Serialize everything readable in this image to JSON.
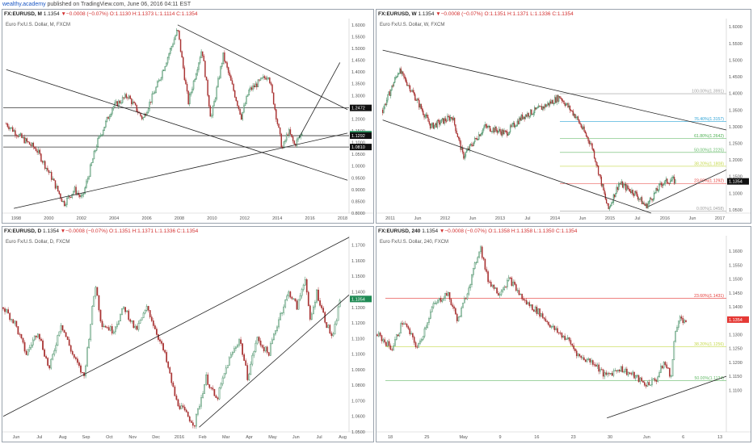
{
  "publish": {
    "author": "wealthy.academy",
    "text": " published on TradingView.com, June 06, 2016 04:11 EST"
  },
  "colors": {
    "up": "#3d8a5e",
    "down": "#a83232",
    "trendline": "#222222",
    "fib_100": "#9e9e9e",
    "fib_764": "#2ea3d6",
    "fib_618": "#4caf50",
    "fib_50": "#66bb6a",
    "fib_382": "#c5d94a",
    "fib_236": "#e53935",
    "fib_0": "#9e9e9e",
    "price_box": "#1f8a54",
    "level_box": "#111111",
    "red_box": "#e53935"
  },
  "panels": [
    {
      "id": "monthly",
      "symbol": "FX:EURUSD, M",
      "price_info": "1.1354",
      "change": "▼−0.0008 (−0.07%)",
      "ohlc": "O:1.1130 H:1.1373 L:1.1114 C:1.1354",
      "subtitle": "Euro Fx/U.S. Dollar, M, FXCM"
    },
    {
      "id": "weekly",
      "symbol": "FX:EURUSD, W",
      "price_info": "1.1354",
      "change": "▼−0.0008 (−0.07%)",
      "ohlc": "O:1.1351 H:1.1371 L:1.1336 C:1.1354",
      "subtitle": "Euro Fx/U.S. Dollar, W, FXCM"
    },
    {
      "id": "daily",
      "symbol": "FX:EURUSD, D",
      "price_info": "1.1354",
      "change": "▼−0.0008 (−0.07%)",
      "ohlc": "O:1.1351 H:1.1371 L:1.1336 C:1.1354",
      "subtitle": "Euro Fx/U.S. Dollar, D, FXCM"
    },
    {
      "id": "h4",
      "symbol": "FX:EURUSD, 240",
      "price_info": "1.1354",
      "change": "▼−0.0008 (−0.07%)",
      "ohlc": "O:1.1358 H:1.1358 L:1.1350 C:1.1354",
      "subtitle": "Euro Fx/U.S. Dollar, 240, FXCM"
    }
  ],
  "chart_data": [
    {
      "type": "candlestick",
      "panel": "monthly",
      "ylim": [
        0.8,
        1.62
      ],
      "y_ticks": [
        "1.6000",
        "1.5500",
        "1.5000",
        "1.4500",
        "1.4000",
        "1.3500",
        "1.3000",
        "1.2500",
        "1.2000",
        "1.1500",
        "1.1000",
        "1.0500",
        "1.0000",
        "0.9500",
        "0.9000",
        "0.8500",
        "0.8000"
      ],
      "x_ticks": [
        "1998",
        "2000",
        "2002",
        "2004",
        "2006",
        "2008",
        "2010",
        "2012",
        "2014",
        "2016",
        "2018"
      ],
      "price_labels": [
        {
          "text": "1.2472",
          "value": 1.2472,
          "style": "dark"
        },
        {
          "text": "1.1354",
          "value": 1.1354,
          "style": "green"
        },
        {
          "text": "1.1292",
          "value": 1.1292,
          "style": "dark"
        },
        {
          "text": "1.0810",
          "value": 1.081,
          "style": "dark"
        }
      ],
      "horizontal_levels": [
        1.2472,
        1.1292,
        1.081
      ],
      "series_path": [
        [
          1997.0,
          1.18
        ],
        [
          1998.0,
          1.12
        ],
        [
          1999.0,
          1.07
        ],
        [
          2000.0,
          0.95
        ],
        [
          2000.8,
          0.84
        ],
        [
          2001.5,
          0.9
        ],
        [
          2002.0,
          0.86
        ],
        [
          2003.0,
          1.1
        ],
        [
          2004.0,
          1.25
        ],
        [
          2005.0,
          1.3
        ],
        [
          2006.0,
          1.2
        ],
        [
          2007.0,
          1.35
        ],
        [
          2008.3,
          1.58
        ],
        [
          2009.0,
          1.27
        ],
        [
          2009.9,
          1.5
        ],
        [
          2010.5,
          1.2
        ],
        [
          2011.3,
          1.47
        ],
        [
          2012.5,
          1.21
        ],
        [
          2013.0,
          1.32
        ],
        [
          2014.3,
          1.39
        ],
        [
          2015.2,
          1.07
        ],
        [
          2015.6,
          1.15
        ],
        [
          2016.0,
          1.09
        ],
        [
          2016.5,
          1.14
        ]
      ],
      "trendlines": [
        {
          "from": [
            2008.3,
            1.6
          ],
          "to": [
            2019.5,
            1.24
          ]
        },
        {
          "from": [
            1997.0,
            1.41
          ],
          "to": [
            2019.5,
            0.94
          ]
        },
        {
          "from": [
            1997.5,
            0.82
          ],
          "to": [
            2019.5,
            1.14
          ]
        },
        {
          "from": [
            2016.3,
            1.12
          ],
          "to": [
            2019.0,
            1.44
          ]
        }
      ],
      "xlim": [
        1996.8,
        2019.6
      ]
    },
    {
      "type": "candlestick",
      "panel": "weekly",
      "ylim": [
        1.04,
        1.62
      ],
      "y_ticks": [
        "1.6000",
        "1.5500",
        "1.5000",
        "1.4500",
        "1.4000",
        "1.3500",
        "1.3000",
        "1.2500",
        "1.2000",
        "1.1500",
        "1.1000",
        "1.0500"
      ],
      "x_ticks": [
        "2011",
        "Jun",
        "2012",
        "Jun",
        "2013",
        "Jul",
        "2014",
        "Jun",
        "2015",
        "Jul",
        "2016",
        "Jun",
        "2017"
      ],
      "price_labels": [
        {
          "text": "1.1354",
          "value": 1.1354,
          "style": "dark"
        }
      ],
      "fibonacci": [
        {
          "label": "100.00%(1.3991)",
          "value": 1.3991,
          "color": "fib_100"
        },
        {
          "label": "76.40%(1.3157)",
          "value": 1.3157,
          "color": "fib_764"
        },
        {
          "label": "61.80%(1.2642)",
          "value": 1.2642,
          "color": "fib_618"
        },
        {
          "label": "50.00%(1.2225)",
          "value": 1.2225,
          "color": "fib_50"
        },
        {
          "label": "38.20%(1.1808)",
          "value": 1.1808,
          "color": "fib_382"
        },
        {
          "label": "23.60%(1.1292)",
          "value": 1.1292,
          "color": "fib_236"
        },
        {
          "label": "0.00%(1.0458)",
          "value": 1.0458,
          "color": "fib_0"
        }
      ],
      "series_path": [
        [
          2011.0,
          1.35
        ],
        [
          2011.3,
          1.47
        ],
        [
          2011.5,
          1.42
        ],
        [
          2011.9,
          1.3
        ],
        [
          2012.3,
          1.33
        ],
        [
          2012.5,
          1.21
        ],
        [
          2012.9,
          1.3
        ],
        [
          2013.3,
          1.28
        ],
        [
          2013.6,
          1.33
        ],
        [
          2014.0,
          1.36
        ],
        [
          2014.3,
          1.39
        ],
        [
          2014.6,
          1.33
        ],
        [
          2014.9,
          1.24
        ],
        [
          2015.2,
          1.05
        ],
        [
          2015.4,
          1.13
        ],
        [
          2015.7,
          1.1
        ],
        [
          2015.9,
          1.06
        ],
        [
          2016.2,
          1.13
        ],
        [
          2016.4,
          1.14
        ],
        [
          2016.45,
          1.135
        ]
      ],
      "trendlines": [
        {
          "from": [
            2011.0,
            1.53
          ],
          "to": [
            2017.4,
            1.29
          ]
        },
        {
          "from": [
            2011.0,
            1.32
          ],
          "to": [
            2016.0,
            1.04
          ]
        },
        {
          "from": [
            2015.95,
            1.06
          ],
          "to": [
            2017.4,
            1.17
          ]
        }
      ],
      "xlim": [
        2010.9,
        2017.4
      ]
    },
    {
      "type": "candlestick",
      "panel": "daily",
      "ylim": [
        1.05,
        1.175
      ],
      "y_ticks": [
        "1.1700",
        "1.1600",
        "1.1500",
        "1.1400",
        "1.1300",
        "1.1200",
        "1.1100",
        "1.1000",
        "1.0900",
        "1.0800",
        "1.0700",
        "1.0600",
        "1.0500"
      ],
      "x_ticks": [
        "Jun",
        "Jul",
        "Aug",
        "Sep",
        "Oct",
        "Nov",
        "Dec",
        "2016",
        "Feb",
        "Mar",
        "Apr",
        "May",
        "Jun",
        "Jul",
        "Aug"
      ],
      "price_labels": [
        {
          "text": "1.1354",
          "value": 1.1354,
          "style": "green"
        }
      ],
      "series_path": [
        [
          0,
          1.13
        ],
        [
          10,
          1.12
        ],
        [
          20,
          1.1
        ],
        [
          30,
          1.115
        ],
        [
          40,
          1.09
        ],
        [
          50,
          1.12
        ],
        [
          60,
          1.1
        ],
        [
          70,
          1.085
        ],
        [
          80,
          1.145
        ],
        [
          85,
          1.12
        ],
        [
          95,
          1.115
        ],
        [
          105,
          1.13
        ],
        [
          115,
          1.115
        ],
        [
          125,
          1.13
        ],
        [
          140,
          1.1
        ],
        [
          150,
          1.07
        ],
        [
          160,
          1.06
        ],
        [
          166,
          1.055
        ],
        [
          176,
          1.085
        ],
        [
          185,
          1.07
        ],
        [
          195,
          1.095
        ],
        [
          205,
          1.11
        ],
        [
          212,
          1.085
        ],
        [
          220,
          1.11
        ],
        [
          230,
          1.1
        ],
        [
          240,
          1.125
        ],
        [
          248,
          1.14
        ],
        [
          255,
          1.13
        ],
        [
          262,
          1.15
        ],
        [
          266,
          1.12
        ],
        [
          272,
          1.14
        ],
        [
          280,
          1.12
        ],
        [
          286,
          1.11
        ],
        [
          292,
          1.135
        ]
      ],
      "trendlines": [
        {
          "from": [
            0,
            1.06
          ],
          "to": [
            300,
            1.175
          ]
        },
        {
          "from": [
            170,
            1.053
          ],
          "to": [
            300,
            1.138
          ]
        }
      ],
      "xlim": [
        0,
        300
      ]
    },
    {
      "type": "candlestick",
      "panel": "h4",
      "ylim": [
        1.095,
        1.165
      ],
      "y_ticks": [
        "1.1600",
        "1.1550",
        "1.1500",
        "1.1450",
        "1.1400",
        "1.1350",
        "1.1300",
        "1.1250",
        "1.1200",
        "1.1150",
        "1.1100"
      ],
      "x_ticks": [
        "18",
        "25",
        "May",
        "9",
        "16",
        "23",
        "30",
        "Jun",
        "6",
        "13"
      ],
      "price_labels": [
        {
          "text": "1.1354",
          "value": 1.1354,
          "style": "red"
        }
      ],
      "fibonacci": [
        {
          "label": "23.60%(1.1431)",
          "value": 1.1431,
          "color": "fib_236"
        },
        {
          "label": "38.20%(1.1256)",
          "value": 1.1256,
          "color": "fib_382"
        },
        {
          "label": "50.00%(1.1134)",
          "value": 1.1134,
          "color": "fib_50"
        }
      ],
      "series_path": [
        [
          0,
          1.13
        ],
        [
          8,
          1.125
        ],
        [
          14,
          1.135
        ],
        [
          22,
          1.125
        ],
        [
          30,
          1.14
        ],
        [
          38,
          1.145
        ],
        [
          44,
          1.135
        ],
        [
          52,
          1.152
        ],
        [
          56,
          1.162
        ],
        [
          60,
          1.15
        ],
        [
          66,
          1.145
        ],
        [
          72,
          1.15
        ],
        [
          80,
          1.142
        ],
        [
          88,
          1.138
        ],
        [
          96,
          1.132
        ],
        [
          104,
          1.128
        ],
        [
          110,
          1.122
        ],
        [
          118,
          1.12
        ],
        [
          124,
          1.115
        ],
        [
          132,
          1.118
        ],
        [
          140,
          1.115
        ],
        [
          146,
          1.112
        ],
        [
          152,
          1.114
        ],
        [
          156,
          1.12
        ],
        [
          160,
          1.115
        ],
        [
          162,
          1.13
        ],
        [
          164,
          1.136
        ],
        [
          168,
          1.135
        ]
      ],
      "trendlines": [
        {
          "from": [
            125,
            1.1
          ],
          "to": [
            190,
            1.115
          ]
        }
      ],
      "xlim": [
        0,
        190
      ]
    }
  ]
}
